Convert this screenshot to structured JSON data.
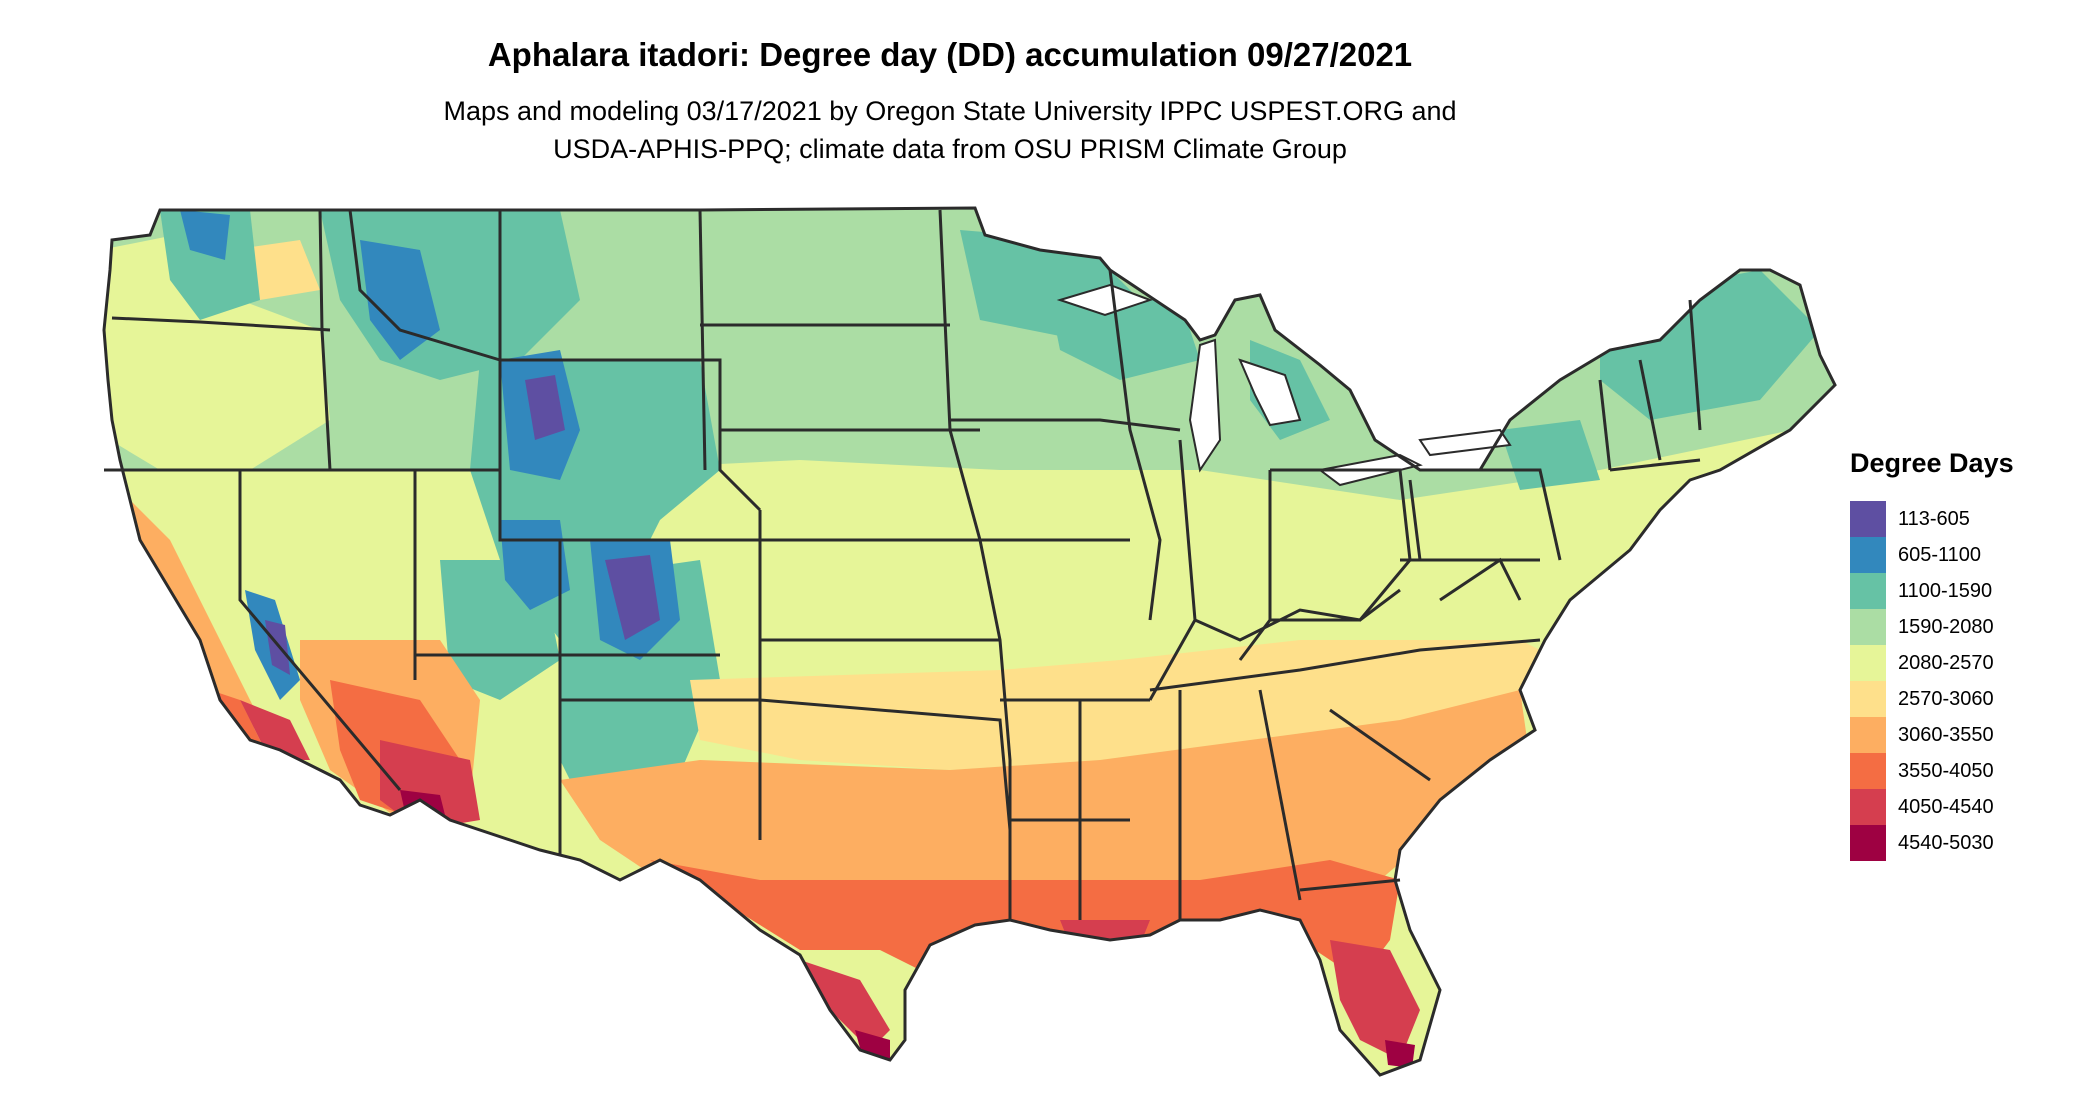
{
  "title": "Aphalara itadori: Degree day (DD) accumulation 09/27/2021",
  "subtitle_lines": [
    "Maps and modeling 03/17/2021 by Oregon State University IPPC USPEST.ORG and",
    "USDA-APHIS-PPQ; climate data from OSU PRISM Climate Group"
  ],
  "legend": {
    "title": "Degree Days",
    "items": [
      {
        "label": "113-605",
        "color": "#5e4fa2"
      },
      {
        "label": "605-1100",
        "color": "#3288bd"
      },
      {
        "label": "1100-1590",
        "color": "#66c2a5"
      },
      {
        "label": "1590-2080",
        "color": "#abdda4"
      },
      {
        "label": "2080-2570",
        "color": "#e6f598"
      },
      {
        "label": "2570-3060",
        "color": "#fee08b"
      },
      {
        "label": "3060-3550",
        "color": "#fdae61"
      },
      {
        "label": "3550-4050",
        "color": "#f46d43"
      },
      {
        "label": "4050-4540",
        "color": "#d53e4f"
      },
      {
        "label": "4540-5030",
        "color": "#9e0142"
      }
    ]
  },
  "map": {
    "region": "Contiguous United States",
    "border_color": "#2b2b2b",
    "water_color": "#ffffff"
  }
}
